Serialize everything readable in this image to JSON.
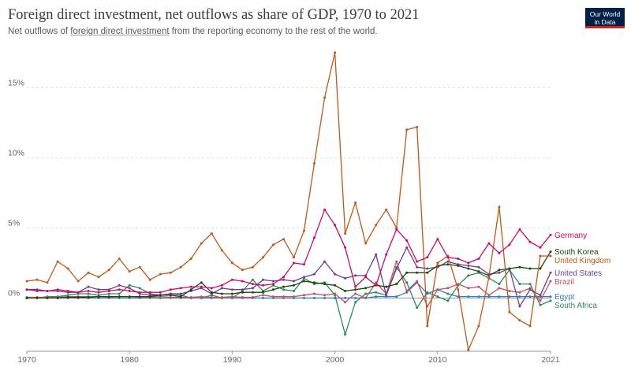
{
  "header": {
    "title": "Foreign direct investment, net outflows as share of GDP, 1970 to 2021",
    "subtitle_prefix": "Net outflows of ",
    "subtitle_link": "foreign direct investment",
    "subtitle_suffix": " from the reporting economy to the rest of the world.",
    "logo_line1": "Our World",
    "logo_line2": "in Data"
  },
  "chart_data": {
    "type": "line",
    "xlim": [
      1970,
      2021
    ],
    "ylim": [
      -3.8,
      18
    ],
    "yticks": [
      0,
      5,
      10,
      15
    ],
    "ytick_labels": [
      "0%",
      "5%",
      "10%",
      "15%"
    ],
    "xticks": [
      1970,
      1980,
      1990,
      2000,
      2010,
      2021
    ],
    "xtick_labels": [
      "1970",
      "1980",
      "1990",
      "2000",
      "2010",
      "2021"
    ],
    "grid": "horizontal dashed",
    "legend": "right (line-end labels)",
    "series": [
      {
        "name": "Germany",
        "color": "#cf0a66",
        "x": [
          1970,
          1971,
          1972,
          1973,
          1974,
          1975,
          1976,
          1977,
          1978,
          1979,
          1980,
          1981,
          1982,
          1983,
          1984,
          1985,
          1986,
          1987,
          1988,
          1989,
          1990,
          1991,
          1992,
          1993,
          1994,
          1995,
          1996,
          1997,
          1998,
          1999,
          2000,
          2001,
          2002,
          2003,
          2004,
          2005,
          2006,
          2007,
          2008,
          2009,
          2010,
          2011,
          2012,
          2013,
          2014,
          2015,
          2016,
          2017,
          2018,
          2019,
          2020,
          2021
        ],
        "y": [
          0.6,
          0.6,
          0.5,
          0.6,
          0.5,
          0.4,
          0.5,
          0.4,
          0.5,
          0.6,
          0.5,
          0.4,
          0.4,
          0.4,
          0.6,
          0.7,
          0.8,
          0.8,
          0.7,
          0.9,
          1.3,
          1.2,
          1.0,
          0.9,
          1.0,
          1.5,
          2.5,
          2.4,
          4.3,
          6.3,
          5.2,
          3.6,
          0.8,
          1.5,
          0.9,
          3.1,
          4.9,
          4.1,
          2.6,
          2.9,
          4.2,
          2.9,
          2.8,
          2.5,
          2.8,
          3.9,
          3.2,
          3.8,
          4.9,
          4.0,
          3.6,
          4.5
        ]
      },
      {
        "name": "South Korea",
        "color": "#18470f",
        "x": [
          1970,
          1971,
          1972,
          1973,
          1974,
          1975,
          1976,
          1977,
          1978,
          1979,
          1980,
          1981,
          1982,
          1983,
          1984,
          1985,
          1986,
          1987,
          1988,
          1989,
          1990,
          1991,
          1992,
          1993,
          1994,
          1995,
          1996,
          1997,
          1998,
          1999,
          2000,
          2001,
          2002,
          2003,
          2004,
          2005,
          2006,
          2007,
          2008,
          2009,
          2010,
          2011,
          2012,
          2013,
          2014,
          2015,
          2016,
          2017,
          2018,
          2019,
          2020,
          2021
        ],
        "y": [
          0.0,
          0.0,
          0.0,
          0.0,
          0.05,
          0.05,
          0.05,
          0.1,
          0.1,
          0.1,
          0.1,
          0.1,
          0.1,
          0.2,
          0.2,
          0.1,
          0.6,
          1.1,
          0.4,
          0.3,
          0.3,
          0.4,
          0.4,
          0.4,
          0.6,
          0.8,
          0.9,
          1.2,
          1.1,
          1.0,
          0.9,
          0.5,
          0.6,
          0.7,
          0.9,
          0.8,
          1.0,
          1.8,
          1.8,
          1.8,
          2.3,
          2.4,
          2.3,
          2.1,
          1.9,
          1.6,
          2.0,
          2.1,
          2.2,
          2.1,
          2.1,
          3.3
        ]
      },
      {
        "name": "United Kingdom",
        "color": "#c15065",
        "stroke": "#c05917",
        "x": [
          1970,
          1971,
          1972,
          1973,
          1974,
          1975,
          1976,
          1977,
          1978,
          1979,
          1980,
          1981,
          1982,
          1983,
          1984,
          1985,
          1986,
          1987,
          1988,
          1989,
          1990,
          1991,
          1992,
          1993,
          1994,
          1995,
          1996,
          1997,
          1998,
          1999,
          2000,
          2001,
          2002,
          2003,
          2004,
          2005,
          2006,
          2007,
          2008,
          2009,
          2010,
          2011,
          2012,
          2013,
          2014,
          2015,
          2016,
          2017,
          2018,
          2019,
          2020,
          2021
        ],
        "y": [
          1.2,
          1.3,
          1.1,
          2.6,
          2.1,
          1.2,
          1.8,
          1.5,
          2.0,
          2.8,
          1.9,
          2.2,
          1.3,
          1.7,
          1.8,
          2.2,
          2.8,
          3.9,
          4.6,
          3.4,
          2.5,
          2.0,
          2.2,
          2.9,
          3.8,
          4.2,
          2.9,
          4.8,
          9.6,
          14.3,
          17.5,
          4.6,
          6.8,
          3.9,
          5.2,
          6.3,
          5.0,
          12.0,
          12.2,
          -2.0,
          2.5,
          3.0,
          0.6,
          -3.7,
          -2.0,
          1.5,
          6.5,
          -1.0,
          -1.6,
          -2.0,
          3.0,
          3.0
        ]
      },
      {
        "name": "United States",
        "color": "#6d3e91",
        "x": [
          1970,
          1971,
          1972,
          1973,
          1974,
          1975,
          1976,
          1977,
          1978,
          1979,
          1980,
          1981,
          1982,
          1983,
          1984,
          1985,
          1986,
          1987,
          1988,
          1989,
          1990,
          1991,
          1992,
          1993,
          1994,
          1995,
          1996,
          1997,
          1998,
          1999,
          2000,
          2001,
          2002,
          2003,
          2004,
          2005,
          2006,
          2007,
          2008,
          2009,
          2010,
          2011,
          2012,
          2013,
          2014,
          2015,
          2016,
          2017,
          2018,
          2019,
          2020,
          2021
        ],
        "y": [
          0.6,
          0.5,
          0.5,
          0.5,
          0.4,
          0.4,
          0.8,
          0.6,
          0.6,
          0.9,
          0.7,
          0.3,
          0.2,
          0.2,
          0.3,
          0.3,
          0.5,
          0.7,
          0.3,
          0.7,
          0.6,
          0.6,
          0.7,
          1.3,
          1.2,
          1.3,
          1.2,
          1.5,
          1.7,
          2.6,
          1.7,
          1.4,
          1.6,
          1.6,
          3.1,
          0.2,
          2.1,
          3.6,
          2.2,
          2.1,
          2.2,
          2.6,
          2.4,
          2.3,
          2.2,
          1.7,
          1.8,
          2.1,
          -0.6,
          0.6,
          0.2,
          1.8
        ]
      },
      {
        "name": "Brazil",
        "color": "#c15065",
        "x": [
          1970,
          1971,
          1972,
          1973,
          1974,
          1975,
          1976,
          1977,
          1978,
          1979,
          1980,
          1981,
          1982,
          1983,
          1984,
          1985,
          1986,
          1987,
          1988,
          1989,
          1990,
          1991,
          1992,
          1993,
          1994,
          1995,
          1996,
          1997,
          1998,
          1999,
          2000,
          2001,
          2002,
          2003,
          2004,
          2005,
          2006,
          2007,
          2008,
          2009,
          2010,
          2011,
          2012,
          2013,
          2014,
          2015,
          2016,
          2017,
          2018,
          2019,
          2020,
          2021
        ],
        "y": [
          0.05,
          0.05,
          0.05,
          0.05,
          0.1,
          0.1,
          0.1,
          0.1,
          0.05,
          0.1,
          0.1,
          0.05,
          0.05,
          0.1,
          0.05,
          0.05,
          0.05,
          0.1,
          0.05,
          0.05,
          0.1,
          0.05,
          0.05,
          0.2,
          0.1,
          0.1,
          0.1,
          0.2,
          0.3,
          0.2,
          0.3,
          -0.3,
          0.3,
          0.0,
          1.1,
          0.3,
          2.6,
          0.5,
          1.2,
          -0.6,
          0.6,
          0.7,
          1.0,
          0.7,
          0.8,
          0.2,
          0.7,
          0.5,
          0.4,
          0.7,
          -0.2,
          1.2
        ]
      },
      {
        "name": "Egypt",
        "color": "#2c7fb8",
        "x": [
          1970,
          1971,
          1972,
          1973,
          1974,
          1975,
          1976,
          1977,
          1978,
          1979,
          1980,
          1981,
          1982,
          1983,
          1984,
          1985,
          1986,
          1987,
          1988,
          1989,
          1990,
          1991,
          1992,
          1993,
          1994,
          1995,
          1996,
          1997,
          1998,
          1999,
          2000,
          2001,
          2002,
          2003,
          2004,
          2005,
          2006,
          2007,
          2008,
          2009,
          2010,
          2011,
          2012,
          2013,
          2014,
          2015,
          2016,
          2017,
          2018,
          2019,
          2020,
          2021
        ],
        "y": [
          0.0,
          0.0,
          0.0,
          0.0,
          0.0,
          0.0,
          0.0,
          0.0,
          0.0,
          0.0,
          0.0,
          0.0,
          0.0,
          0.0,
          0.0,
          0.0,
          0.0,
          0.0,
          0.0,
          0.0,
          0.0,
          0.0,
          0.0,
          0.0,
          0.0,
          0.0,
          0.0,
          0.0,
          0.0,
          0.0,
          0.0,
          0.0,
          0.0,
          0.0,
          0.1,
          0.1,
          0.1,
          0.4,
          1.1,
          0.3,
          0.6,
          0.3,
          0.1,
          0.1,
          0.1,
          0.1,
          0.1,
          0.1,
          0.1,
          0.1,
          0.1,
          0.1
        ]
      },
      {
        "name": "South Africa",
        "color": "#2e8b57",
        "x": [
          1970,
          1971,
          1972,
          1973,
          1974,
          1975,
          1976,
          1977,
          1978,
          1979,
          1980,
          1981,
          1982,
          1983,
          1984,
          1985,
          1986,
          1987,
          1988,
          1989,
          1990,
          1991,
          1992,
          1993,
          1994,
          1995,
          1996,
          1997,
          1998,
          1999,
          2000,
          2001,
          2002,
          2003,
          2004,
          2005,
          2006,
          2007,
          2008,
          2009,
          2010,
          2011,
          2012,
          2013,
          2014,
          2015,
          2016,
          2017,
          2018,
          2019,
          2020,
          2021
        ],
        "y": [
          0.0,
          0.0,
          0.1,
          0.1,
          0.2,
          0.3,
          0.3,
          0.2,
          0.3,
          0.3,
          0.9,
          0.7,
          0.3,
          0.2,
          0.3,
          0.2,
          0.0,
          0.0,
          0.2,
          0.0,
          0.0,
          0.5,
          1.3,
          0.5,
          0.9,
          0.6,
          0.5,
          1.4,
          1.0,
          1.1,
          0.2,
          -2.6,
          -0.3,
          0.3,
          0.4,
          0.2,
          2.2,
          1.1,
          -0.7,
          0.4,
          0.1,
          -0.2,
          0.9,
          1.6,
          1.8,
          1.4,
          1.0,
          2.0,
          1.0,
          1.0,
          -0.5,
          -0.2
        ]
      }
    ]
  }
}
